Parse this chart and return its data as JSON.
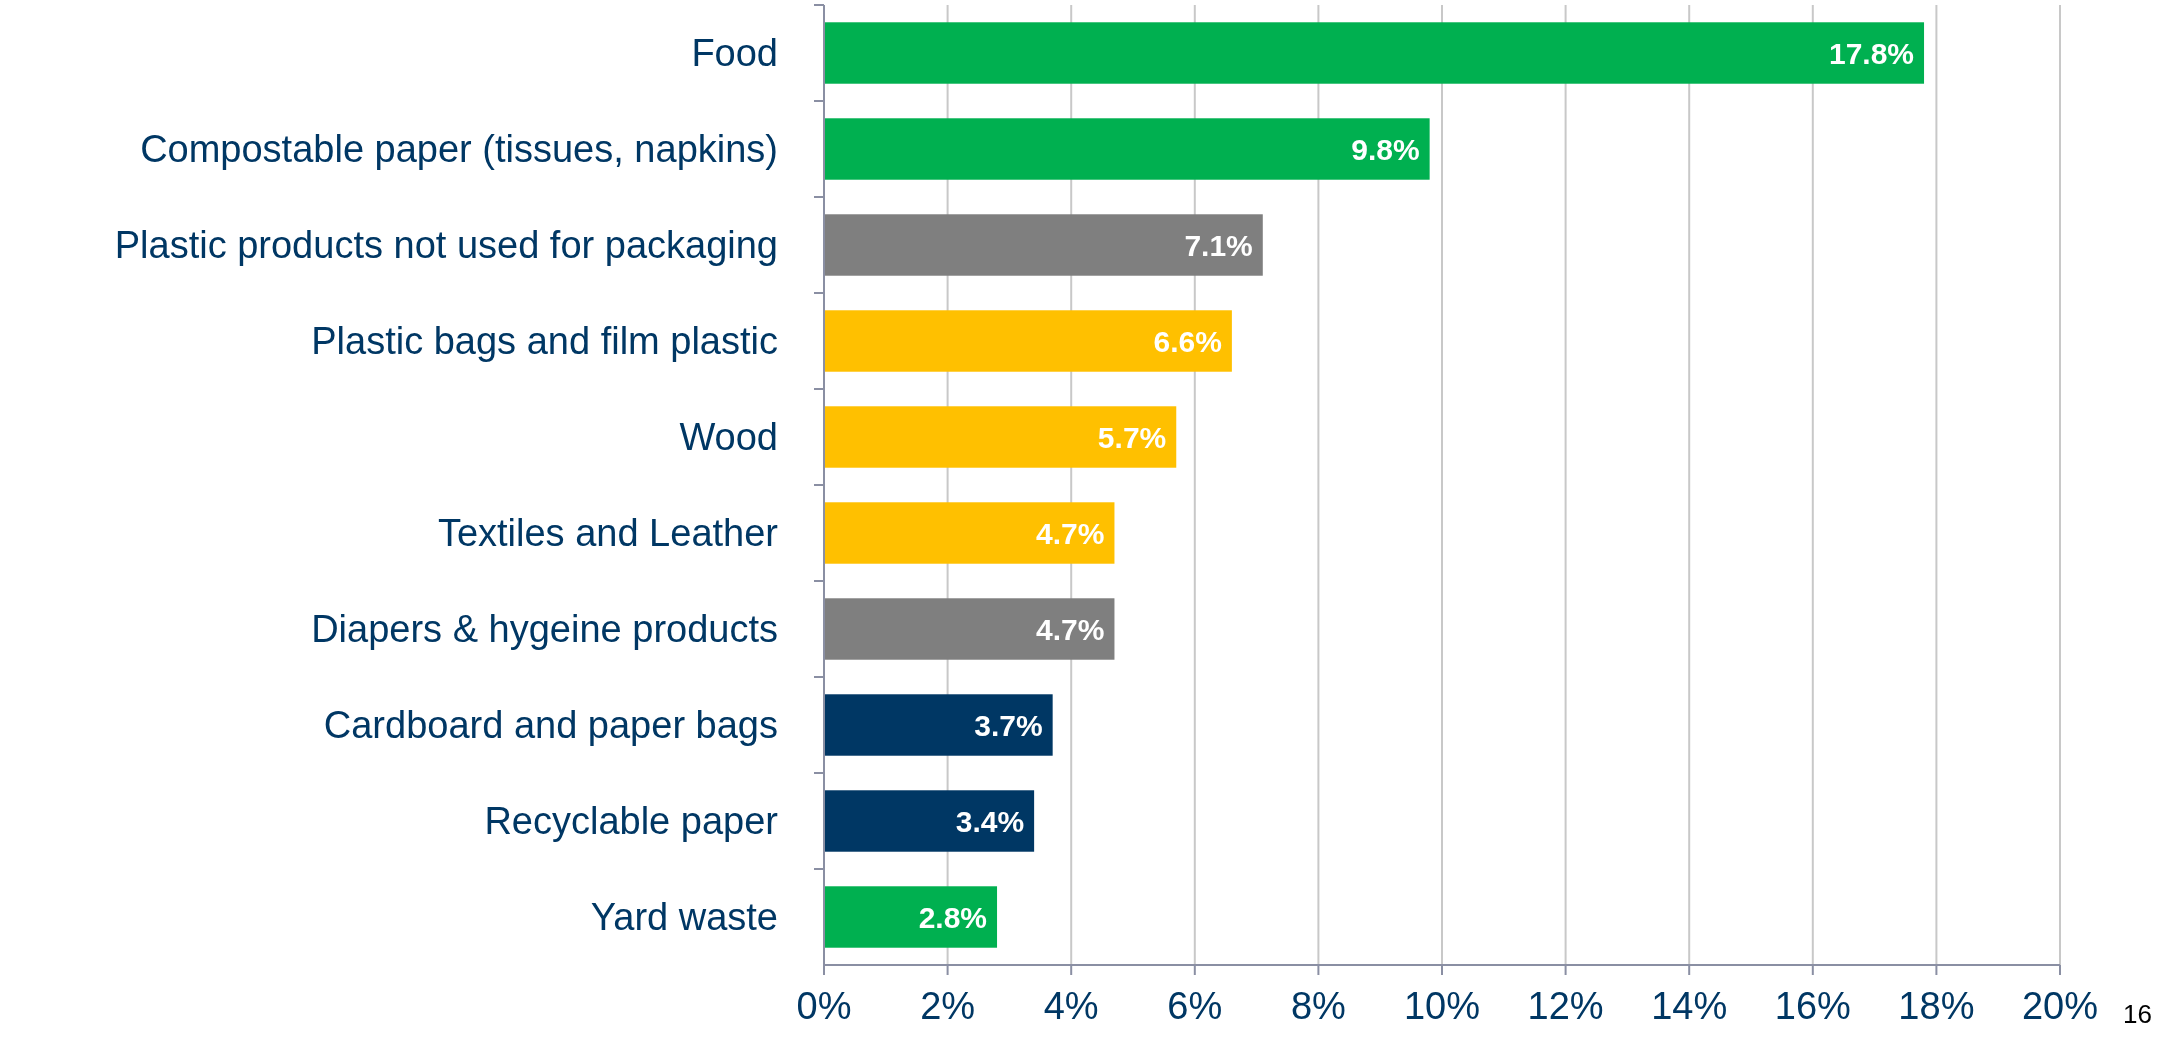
{
  "chart_data": {
    "type": "bar",
    "orientation": "horizontal",
    "categories": [
      "Food",
      "Compostable paper (tissues, napkins)",
      "Plastic products not used for packaging",
      "Plastic bags and film plastic",
      "Wood",
      "Textiles and Leather",
      "Diapers & hygeine products",
      "Cardboard and paper bags",
      "Recyclable paper",
      "Yard waste"
    ],
    "values": [
      17.8,
      9.8,
      7.1,
      6.6,
      5.7,
      4.7,
      4.7,
      3.7,
      3.4,
      2.8
    ],
    "colors": [
      "#00b050",
      "#00b050",
      "#7f7f7f",
      "#ffc000",
      "#ffc000",
      "#ffc000",
      "#7f7f7f",
      "#003764",
      "#003764",
      "#00b050"
    ],
    "value_labels": [
      "17.8%",
      "9.8%",
      "7.1%",
      "6.6%",
      "5.7%",
      "4.7%",
      "4.7%",
      "3.7%",
      "3.4%",
      "2.8%"
    ],
    "xlim": [
      0,
      20
    ],
    "xticks": [
      {
        "value": 0,
        "label": "0%"
      },
      {
        "value": 2,
        "label": "2%"
      },
      {
        "value": 4,
        "label": "4%"
      },
      {
        "value": 6,
        "label": "6%"
      },
      {
        "value": 8,
        "label": "8%"
      },
      {
        "value": 10,
        "label": "10%"
      },
      {
        "value": 12,
        "label": "12%"
      },
      {
        "value": 14,
        "label": "14%"
      },
      {
        "value": 16,
        "label": "16%"
      },
      {
        "value": 18,
        "label": "18%"
      },
      {
        "value": 20,
        "label": "20%"
      }
    ],
    "grid": "x",
    "annotations": [
      "16"
    ]
  }
}
